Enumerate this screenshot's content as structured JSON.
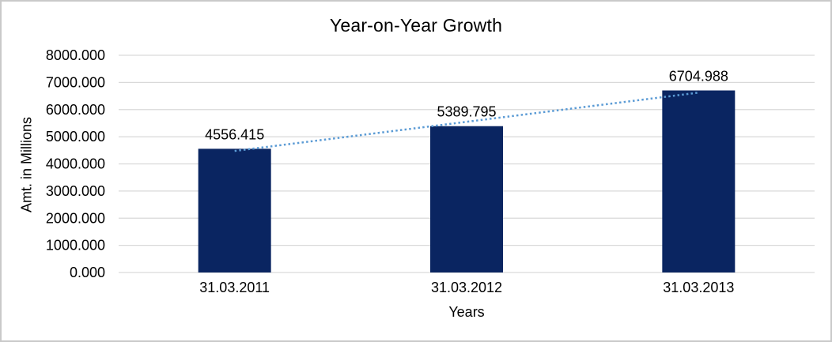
{
  "chart_data": {
    "type": "bar",
    "title": "Year-on-Year Growth",
    "categories": [
      "31.03.2011",
      "31.03.2012",
      "31.03.2013"
    ],
    "values": [
      4556.415,
      5389.795,
      6704.988
    ],
    "data_labels": [
      "4556.415",
      "5389.795",
      "6704.988"
    ],
    "xlabel": "Years",
    "ylabel": "Amt. in Millions",
    "ylim": [
      0,
      8000
    ],
    "ytick_step": 1000,
    "ytick_labels": [
      "0.000",
      "1000.000",
      "2000.000",
      "3000.000",
      "4000.000",
      "5000.000",
      "6000.000",
      "7000.000",
      "8000.000"
    ],
    "grid": true,
    "legend": "none",
    "trendline": {
      "type": "linear",
      "style": "dotted"
    },
    "colors": {
      "bar": "#0a2561",
      "trendline": "#5b9bd5",
      "gridline": "#d9d9d9",
      "text": "#000000",
      "background": "#ffffff",
      "border": "#c9c9c9"
    }
  }
}
